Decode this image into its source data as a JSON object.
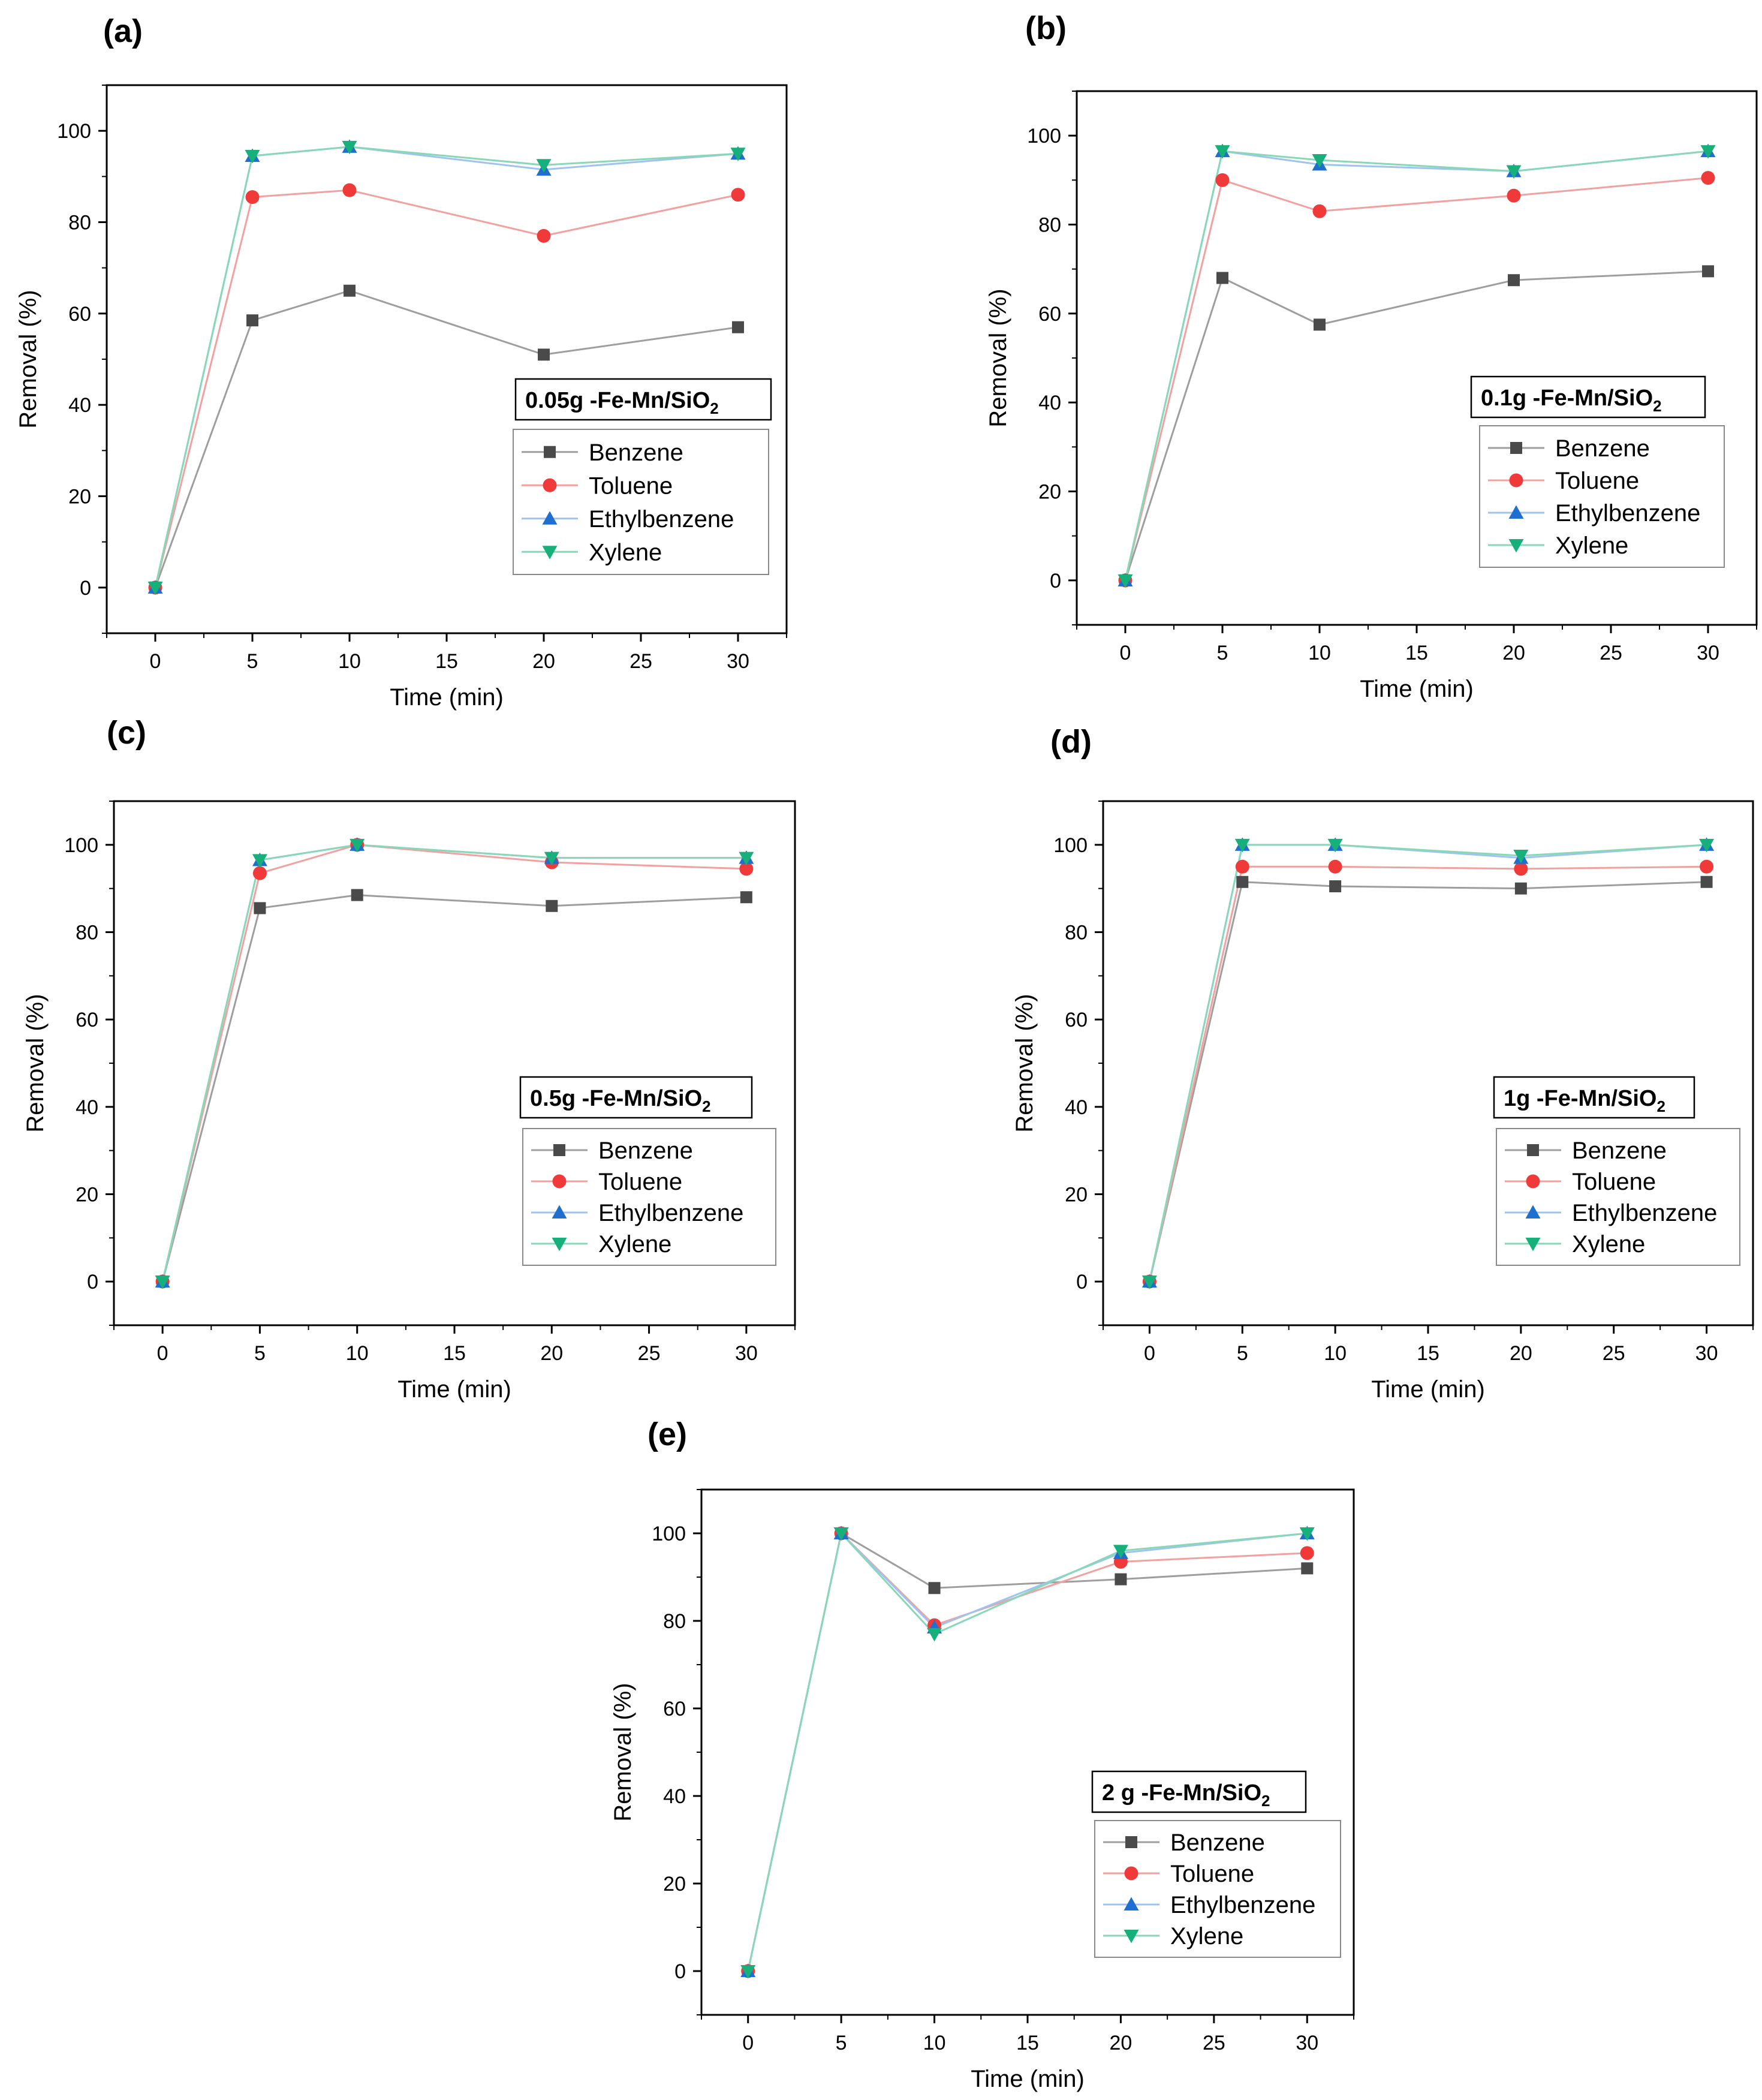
{
  "figure": {
    "series_style": [
      {
        "name": "Benzene",
        "color": "#4a4a4a",
        "line": "#9e9e9e",
        "marker": "square"
      },
      {
        "name": "Toluene",
        "color": "#f03a3a",
        "line": "#f2a0a0",
        "marker": "circle"
      },
      {
        "name": "Ethylbenzene",
        "color": "#1f6fd1",
        "line": "#9ec3ee",
        "marker": "triangle-up"
      },
      {
        "name": "Xylene",
        "color": "#17b07a",
        "line": "#88d8b8",
        "marker": "triangle-down"
      }
    ]
  },
  "chart_data": [
    {
      "panel": "(a)",
      "type": "line",
      "tag": {
        "main": "0.05g -Fe-Mn/SiO",
        "sub": "2"
      },
      "xlabel": "Time (min)",
      "ylabel": "Removal (%)",
      "xlim": [
        -2.5,
        32.5
      ],
      "ylim": [
        -10,
        110
      ],
      "xticks": [
        0,
        5,
        10,
        15,
        20,
        25,
        30
      ],
      "yticks": [
        0,
        20,
        40,
        60,
        80,
        100
      ],
      "x": [
        0,
        5,
        10,
        20,
        30
      ],
      "series": [
        {
          "name": "Benzene",
          "values": [
            0,
            58.5,
            65,
            51,
            57
          ]
        },
        {
          "name": "Toluene",
          "values": [
            0,
            85.5,
            87,
            77,
            86
          ]
        },
        {
          "name": "Ethylbenzene",
          "values": [
            0,
            94.5,
            96.5,
            91.5,
            95
          ]
        },
        {
          "name": "Xylene",
          "values": [
            0,
            94.5,
            96.5,
            92.5,
            95
          ]
        }
      ]
    },
    {
      "panel": "(b)",
      "type": "line",
      "tag": {
        "main": "0.1g -Fe-Mn/SiO",
        "sub": "2"
      },
      "xlabel": "Time (min)",
      "ylabel": "Removal (%)",
      "xlim": [
        -2.5,
        32.5
      ],
      "ylim": [
        -10,
        110
      ],
      "xticks": [
        0,
        5,
        10,
        15,
        20,
        25,
        30
      ],
      "yticks": [
        0,
        20,
        40,
        60,
        80,
        100
      ],
      "x": [
        0,
        5,
        10,
        20,
        30
      ],
      "series": [
        {
          "name": "Benzene",
          "values": [
            0,
            68,
            57.5,
            67.5,
            69.5
          ]
        },
        {
          "name": "Toluene",
          "values": [
            0,
            90,
            83,
            86.5,
            90.5
          ]
        },
        {
          "name": "Ethylbenzene",
          "values": [
            0,
            96.5,
            93.5,
            92,
            96.5
          ]
        },
        {
          "name": "Xylene",
          "values": [
            0,
            96.5,
            94.5,
            92,
            96.5
          ]
        }
      ]
    },
    {
      "panel": "(c)",
      "type": "line",
      "tag": {
        "main": "0.5g -Fe-Mn/SiO",
        "sub": "2"
      },
      "xlabel": "Time (min)",
      "ylabel": "Removal (%)",
      "xlim": [
        -2.5,
        32.5
      ],
      "ylim": [
        -10,
        110
      ],
      "xticks": [
        0,
        5,
        10,
        15,
        20,
        25,
        30
      ],
      "yticks": [
        0,
        20,
        40,
        60,
        80,
        100
      ],
      "x": [
        0,
        5,
        10,
        20,
        30
      ],
      "series": [
        {
          "name": "Benzene",
          "values": [
            0,
            85.5,
            88.5,
            86,
            88
          ]
        },
        {
          "name": "Toluene",
          "values": [
            0,
            93.5,
            100,
            96,
            94.5
          ]
        },
        {
          "name": "Ethylbenzene",
          "values": [
            0,
            96.5,
            100,
            97,
            97
          ]
        },
        {
          "name": "Xylene",
          "values": [
            0,
            96.5,
            100,
            97,
            97
          ]
        }
      ]
    },
    {
      "panel": "(d)",
      "type": "line",
      "tag": {
        "main": "1g -Fe-Mn/SiO",
        "sub": "2"
      },
      "xlabel": "Time (min)",
      "ylabel": "Removal (%)",
      "xlim": [
        -2.5,
        32.5
      ],
      "ylim": [
        -10,
        110
      ],
      "xticks": [
        0,
        5,
        10,
        15,
        20,
        25,
        30
      ],
      "yticks": [
        0,
        20,
        40,
        60,
        80,
        100
      ],
      "x": [
        0,
        5,
        10,
        20,
        30
      ],
      "series": [
        {
          "name": "Benzene",
          "values": [
            0,
            91.5,
            90.5,
            90,
            91.5
          ]
        },
        {
          "name": "Toluene",
          "values": [
            0,
            95,
            95,
            94.5,
            95
          ]
        },
        {
          "name": "Ethylbenzene",
          "values": [
            0,
            100,
            100,
            97,
            100
          ]
        },
        {
          "name": "Xylene",
          "values": [
            0,
            100,
            100,
            97.5,
            100
          ]
        }
      ]
    },
    {
      "panel": "(e)",
      "type": "line",
      "tag": {
        "main": "2 g -Fe-Mn/SiO",
        "sub": "2"
      },
      "xlabel": "Time (min)",
      "ylabel": "Removal (%)",
      "xlim": [
        -2.5,
        32.5
      ],
      "ylim": [
        -10,
        110
      ],
      "xticks": [
        0,
        5,
        10,
        15,
        20,
        25,
        30
      ],
      "yticks": [
        0,
        20,
        40,
        60,
        80,
        100
      ],
      "x": [
        0,
        5,
        10,
        20,
        30
      ],
      "series": [
        {
          "name": "Benzene",
          "values": [
            0,
            100,
            87.5,
            89.5,
            92
          ]
        },
        {
          "name": "Toluene",
          "values": [
            0,
            100,
            79,
            93.5,
            95.5
          ]
        },
        {
          "name": "Ethylbenzene",
          "values": [
            0,
            100,
            78.5,
            95.5,
            100
          ]
        },
        {
          "name": "Xylene",
          "values": [
            0,
            100,
            77,
            96,
            100
          ]
        }
      ]
    }
  ]
}
